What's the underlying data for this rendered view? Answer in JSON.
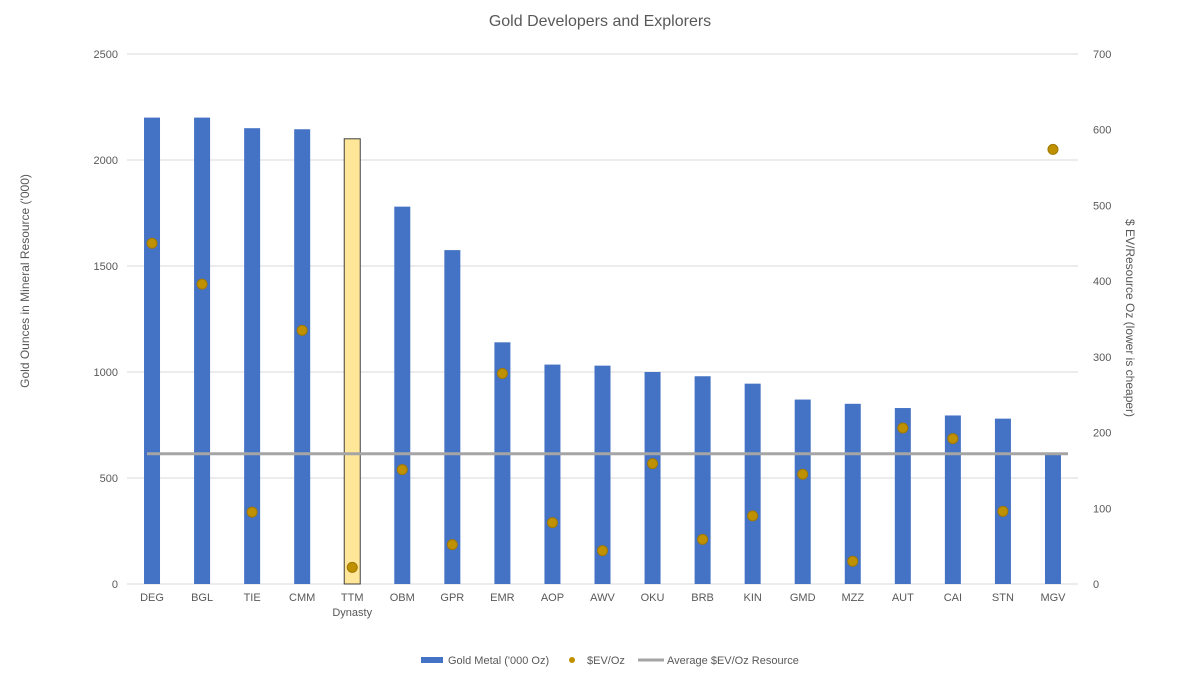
{
  "chart_data": {
    "type": "bar",
    "title": "Gold Developers and Explorers",
    "categories": [
      "DEG",
      "BGL",
      "TIE",
      "CMM",
      "TTM",
      "OBM",
      "GPR",
      "EMR",
      "AOP",
      "AWV",
      "OKU",
      "BRB",
      "KIN",
      "GMD",
      "MZZ",
      "AUT",
      "CAI",
      "STN",
      "MGV"
    ],
    "category_sublabels": {
      "TTM": "Dynasty"
    },
    "highlight_category": "TTM",
    "ylabel": "Gold Ounces in Mineral Resource ('000)",
    "y2label": "$ EV/Resource Oz (lower is cheaper)",
    "ylim": [
      0,
      2500
    ],
    "y2lim": [
      0,
      700
    ],
    "yticks": [
      0,
      500,
      1000,
      1500,
      2000,
      2500
    ],
    "y2ticks": [
      0,
      100,
      200,
      300,
      400,
      500,
      600,
      700
    ],
    "grid": true,
    "legend_position": "bottom",
    "series": [
      {
        "name": "Gold Metal ('000 Oz)",
        "type": "bar",
        "axis": "left",
        "values": [
          2200,
          2200,
          2150,
          2145,
          2100,
          1780,
          1575,
          1140,
          1035,
          1030,
          1000,
          980,
          945,
          870,
          850,
          830,
          795,
          780,
          615
        ]
      },
      {
        "name": "$EV/Oz",
        "type": "scatter",
        "axis": "right",
        "values": [
          450,
          396,
          95,
          335,
          22,
          151,
          52,
          278,
          81,
          44,
          159,
          59,
          90,
          145,
          30,
          206,
          192,
          96,
          574
        ]
      },
      {
        "name": "Average $EV/Oz Resource",
        "type": "line",
        "axis": "right",
        "value": 172
      }
    ],
    "colors": {
      "bar": "#4472c4",
      "highlight_bar": "#ffe699",
      "highlight_border": "#404040",
      "marker": "#bf9000",
      "marker_border": "#a07800",
      "average_line": "#a5a5a5",
      "grid": "#d9d9d9",
      "text": "#595959"
    }
  }
}
